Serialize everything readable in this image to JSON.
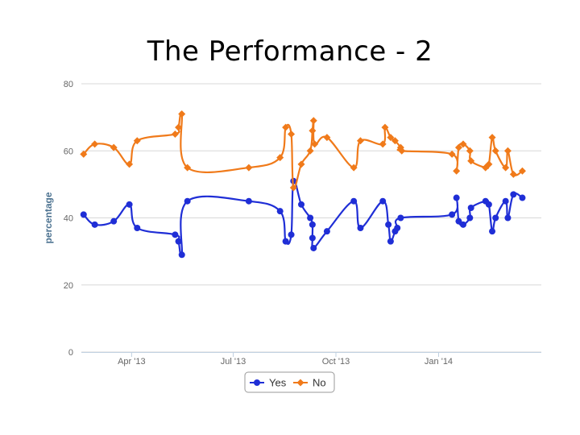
{
  "slide": {
    "title": "The Performance - 2"
  },
  "chart_data": {
    "type": "line",
    "title": "The Performance - 2",
    "xlabel": "",
    "ylabel": "percentage",
    "ylim": [
      0,
      80
    ],
    "yticks": [
      0,
      20,
      40,
      60,
      80
    ],
    "xticks": [
      {
        "label": "Apr '13",
        "date": "2013-04-01"
      },
      {
        "label": "Jul '13",
        "date": "2013-07-01"
      },
      {
        "label": "Oct '13",
        "date": "2013-10-01"
      },
      {
        "label": "Jan '14",
        "date": "2014-01-01"
      }
    ],
    "xlim": [
      "2013-02-15",
      "2014-04-03"
    ],
    "grid": true,
    "legend": "bottom-center",
    "series": [
      {
        "name": "Yes",
        "color": "#1f2ed6",
        "marker": "circle",
        "points": [
          [
            "2013-02-17",
            41
          ],
          [
            "2013-02-27",
            38
          ],
          [
            "2013-03-16",
            39
          ],
          [
            "2013-03-30",
            44
          ],
          [
            "2013-04-06",
            37
          ],
          [
            "2013-05-10",
            35
          ],
          [
            "2013-05-13",
            33
          ],
          [
            "2013-05-16",
            29
          ],
          [
            "2013-05-21",
            45
          ],
          [
            "2013-07-15",
            45
          ],
          [
            "2013-08-12",
            42
          ],
          [
            "2013-08-17",
            33
          ],
          [
            "2013-08-22",
            35
          ],
          [
            "2013-08-24",
            51
          ],
          [
            "2013-08-31",
            44
          ],
          [
            "2013-09-08",
            40
          ],
          [
            "2013-09-10",
            38
          ],
          [
            "2013-09-10",
            34
          ],
          [
            "2013-09-11",
            31
          ],
          [
            "2013-09-23",
            36
          ],
          [
            "2013-10-17",
            45
          ],
          [
            "2013-10-23",
            37
          ],
          [
            "2013-11-12",
            45
          ],
          [
            "2013-11-17",
            38
          ],
          [
            "2013-11-19",
            33
          ],
          [
            "2013-11-23",
            36
          ],
          [
            "2013-11-25",
            37
          ],
          [
            "2013-11-28",
            40
          ],
          [
            "2014-01-13",
            41
          ],
          [
            "2014-01-17",
            46
          ],
          [
            "2014-01-19",
            39
          ],
          [
            "2014-01-23",
            38
          ],
          [
            "2014-01-29",
            40
          ],
          [
            "2014-01-30",
            43
          ],
          [
            "2014-02-12",
            45
          ],
          [
            "2014-02-15",
            44
          ],
          [
            "2014-02-18",
            36
          ],
          [
            "2014-02-21",
            40
          ],
          [
            "2014-03-02",
            45
          ],
          [
            "2014-03-04",
            40
          ],
          [
            "2014-03-09",
            47
          ],
          [
            "2014-03-17",
            46
          ]
        ]
      },
      {
        "name": "No",
        "color": "#f07a1a",
        "marker": "diamond",
        "points": [
          [
            "2013-02-17",
            59
          ],
          [
            "2013-02-27",
            62
          ],
          [
            "2013-03-16",
            61
          ],
          [
            "2013-03-30",
            56
          ],
          [
            "2013-04-06",
            63
          ],
          [
            "2013-05-10",
            65
          ],
          [
            "2013-05-13",
            67
          ],
          [
            "2013-05-16",
            71
          ],
          [
            "2013-05-21",
            55
          ],
          [
            "2013-07-15",
            55
          ],
          [
            "2013-08-12",
            58
          ],
          [
            "2013-08-17",
            67
          ],
          [
            "2013-08-22",
            65
          ],
          [
            "2013-08-24",
            49
          ],
          [
            "2013-08-31",
            56
          ],
          [
            "2013-09-08",
            60
          ],
          [
            "2013-09-10",
            66
          ],
          [
            "2013-09-11",
            69
          ],
          [
            "2013-09-12",
            62
          ],
          [
            "2013-09-23",
            64
          ],
          [
            "2013-10-17",
            55
          ],
          [
            "2013-10-23",
            63
          ],
          [
            "2013-11-12",
            62
          ],
          [
            "2013-11-14",
            67
          ],
          [
            "2013-11-19",
            64
          ],
          [
            "2013-11-23",
            63
          ],
          [
            "2013-11-28",
            61
          ],
          [
            "2013-11-29",
            60
          ],
          [
            "2014-01-13",
            59
          ],
          [
            "2014-01-17",
            54
          ],
          [
            "2014-01-19",
            61
          ],
          [
            "2014-01-23",
            62
          ],
          [
            "2014-01-29",
            60
          ],
          [
            "2014-01-30",
            57
          ],
          [
            "2014-02-12",
            55
          ],
          [
            "2014-02-15",
            56
          ],
          [
            "2014-02-18",
            64
          ],
          [
            "2014-02-21",
            60
          ],
          [
            "2014-03-02",
            55
          ],
          [
            "2014-03-04",
            60
          ],
          [
            "2014-03-09",
            53
          ],
          [
            "2014-03-17",
            54
          ]
        ]
      }
    ]
  }
}
